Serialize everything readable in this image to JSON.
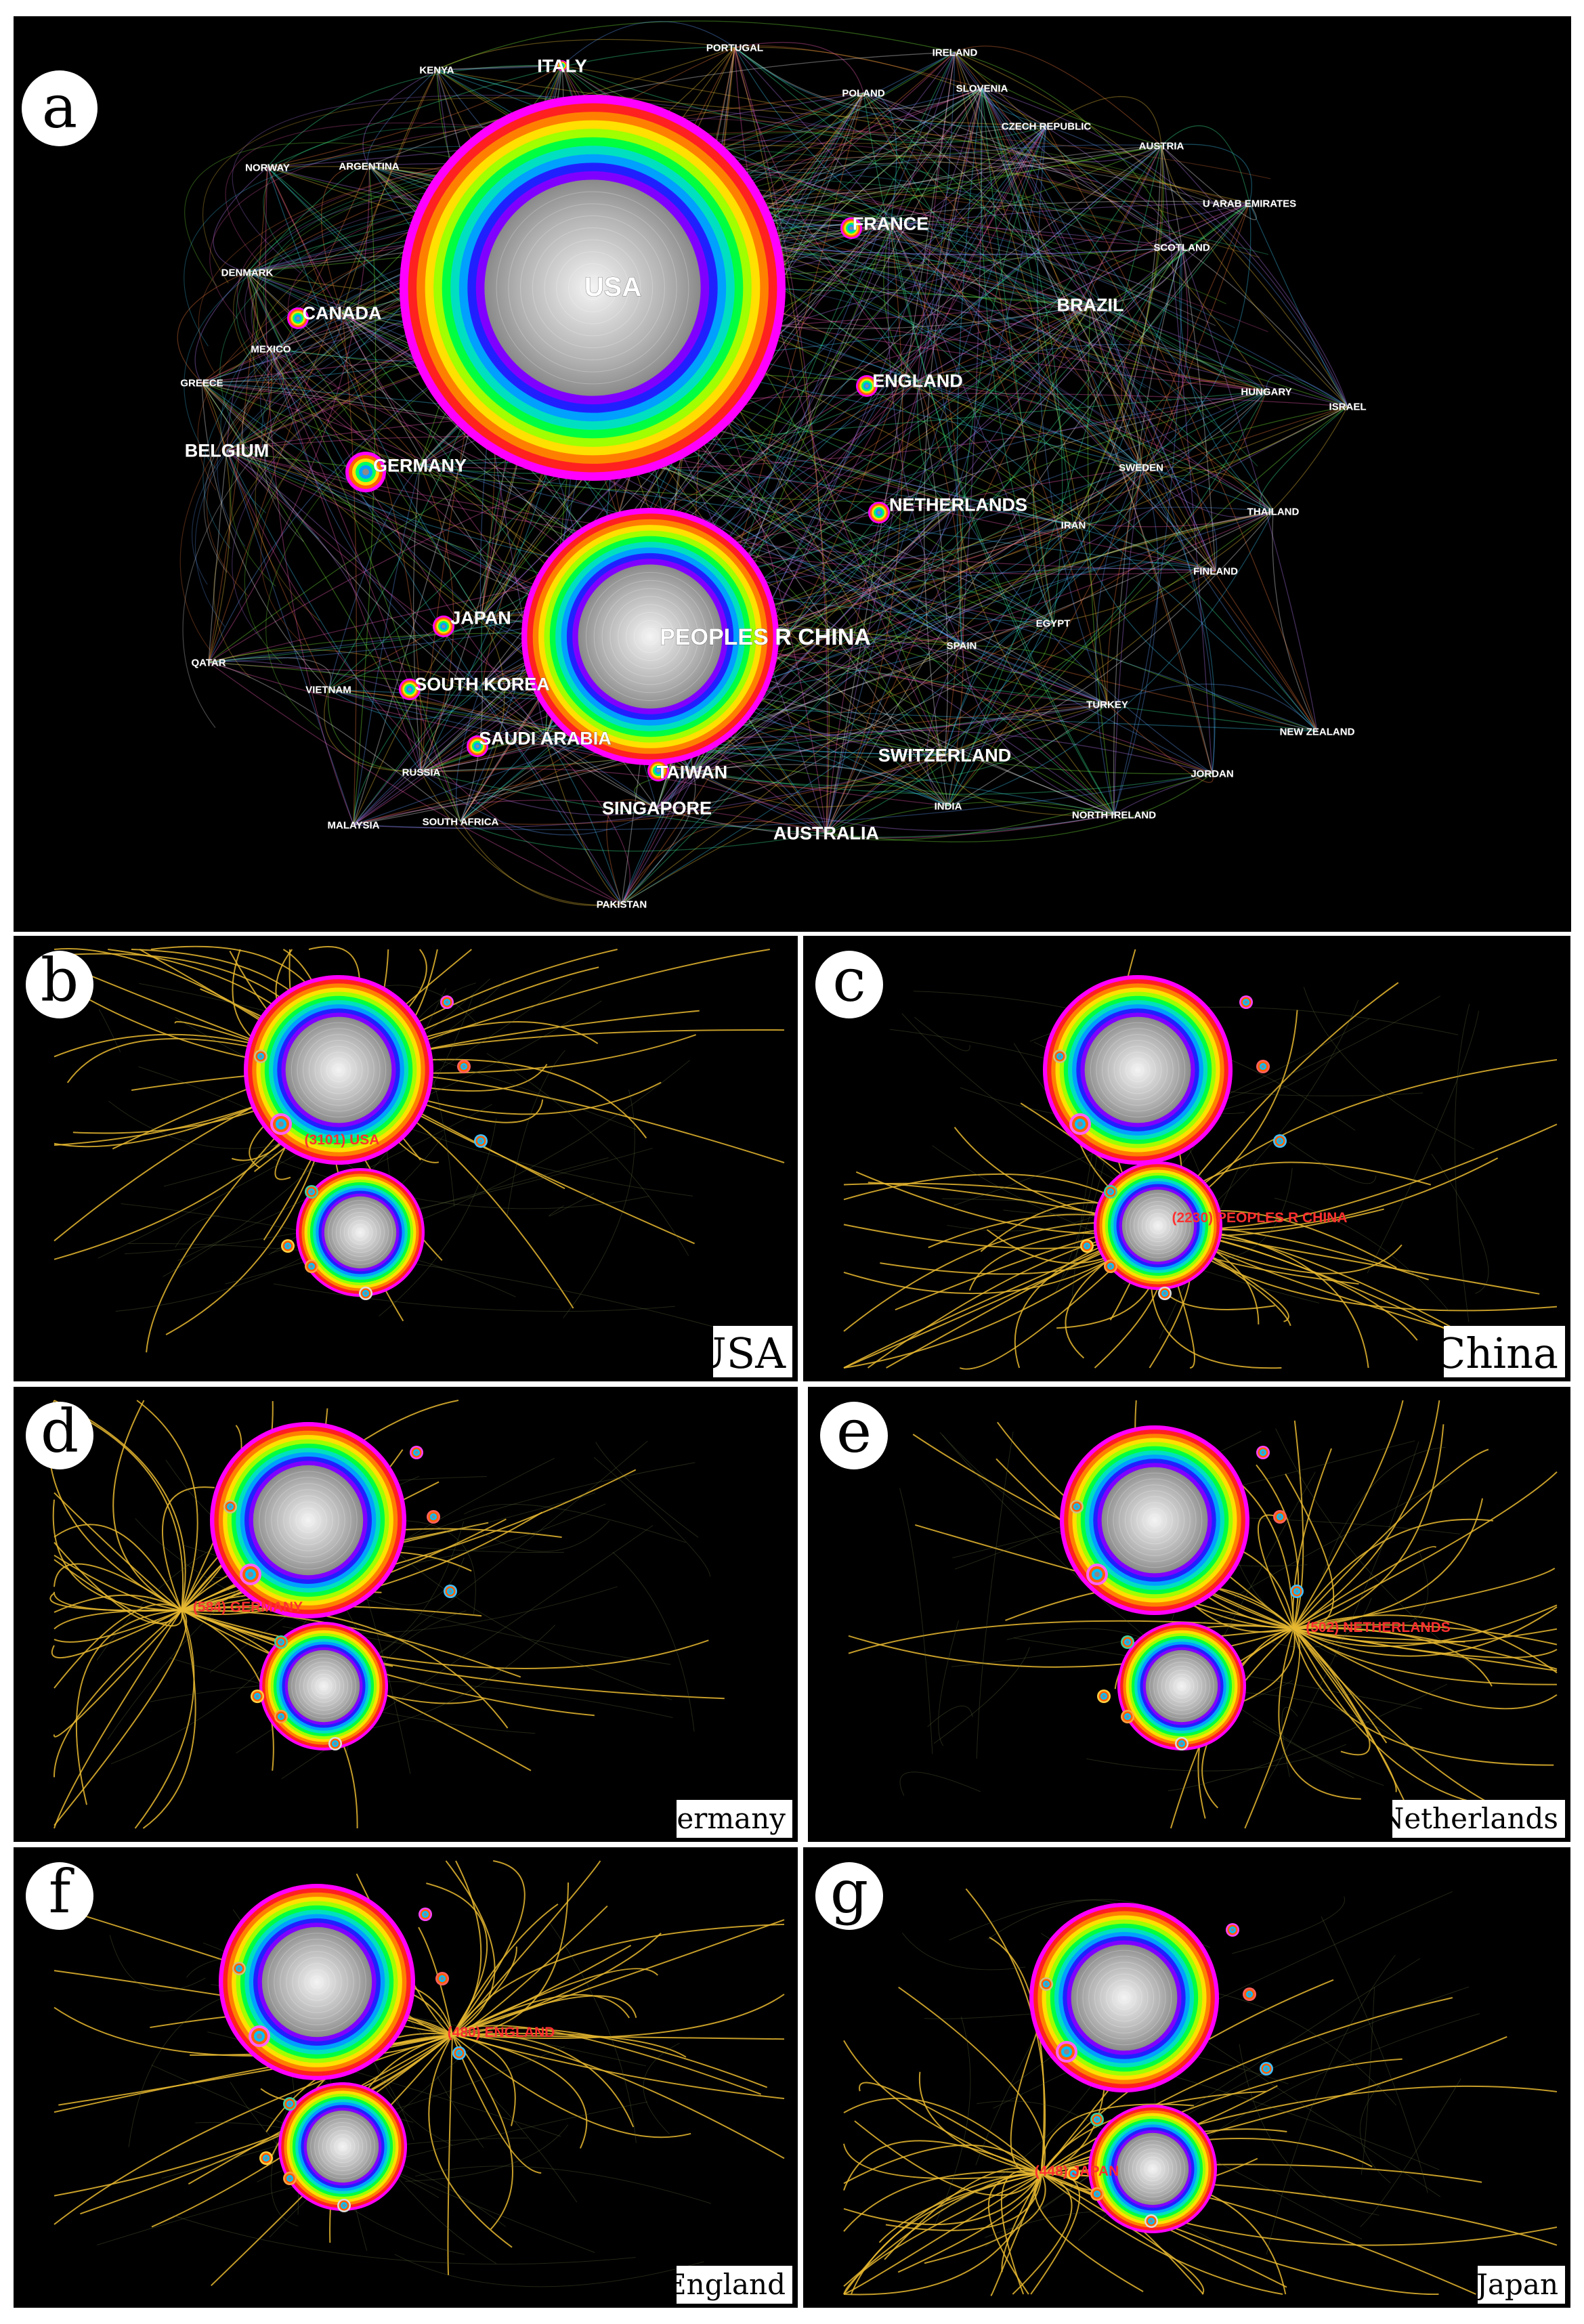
{
  "main_network": {
    "letter": "a",
    "nodes": [
      {
        "name": "USA",
        "label": "USA",
        "size": "xl",
        "ring": true
      },
      {
        "name": "PEOPLES R CHINA",
        "label": "PEOPLES R CHINA",
        "size": "xl",
        "ring": true
      },
      {
        "name": "ITALY",
        "label": "ITALY",
        "size": "m"
      },
      {
        "name": "KENYA",
        "label": "KENYA",
        "size": "s"
      },
      {
        "name": "PORTUGAL",
        "label": "PORTUGAL",
        "size": "s"
      },
      {
        "name": "IRELAND",
        "label": "IRELAND",
        "size": "s"
      },
      {
        "name": "POLAND",
        "label": "POLAND",
        "size": "s"
      },
      {
        "name": "SLOVENIA",
        "label": "SLOVENIA",
        "size": "s"
      },
      {
        "name": "CZECH REPUBLIC",
        "label": "CZECH REPUBLIC",
        "size": "s"
      },
      {
        "name": "AUSTRIA",
        "label": "AUSTRIA",
        "size": "s"
      },
      {
        "name": "NORWAY",
        "label": "NORWAY",
        "size": "s"
      },
      {
        "name": "ARGENTINA",
        "label": "ARGENTINA",
        "size": "s"
      },
      {
        "name": "FRANCE",
        "label": "FRANCE",
        "size": "m"
      },
      {
        "name": "U ARAB EMIRATES",
        "label": "U ARAB EMIRATES",
        "size": "s"
      },
      {
        "name": "DENMARK",
        "label": "DENMARK",
        "size": "s"
      },
      {
        "name": "CANADA",
        "label": "CANADA",
        "size": "m"
      },
      {
        "name": "SCOTLAND",
        "label": "SCOTLAND",
        "size": "s"
      },
      {
        "name": "BRAZIL",
        "label": "BRAZIL",
        "size": "m"
      },
      {
        "name": "MEXICO",
        "label": "MEXICO",
        "size": "s"
      },
      {
        "name": "GREECE",
        "label": "GREECE",
        "size": "s"
      },
      {
        "name": "ENGLAND",
        "label": "ENGLAND",
        "size": "m"
      },
      {
        "name": "HUNGARY",
        "label": "HUNGARY",
        "size": "s"
      },
      {
        "name": "ISRAEL",
        "label": "ISRAEL",
        "size": "s"
      },
      {
        "name": "BELGIUM",
        "label": "BELGIUM",
        "size": "m"
      },
      {
        "name": "GERMANY",
        "label": "GERMANY",
        "size": "m"
      },
      {
        "name": "SWEDEN",
        "label": "SWEDEN",
        "size": "s"
      },
      {
        "name": "NETHERLANDS",
        "label": "NETHERLANDS",
        "size": "m"
      },
      {
        "name": "THAILAND",
        "label": "THAILAND",
        "size": "s"
      },
      {
        "name": "IRAN",
        "label": "IRAN",
        "size": "s"
      },
      {
        "name": "FINLAND",
        "label": "FINLAND",
        "size": "s"
      },
      {
        "name": "JAPAN",
        "label": "JAPAN",
        "size": "m"
      },
      {
        "name": "EGYPT",
        "label": "EGYPT",
        "size": "s"
      },
      {
        "name": "QATAR",
        "label": "QATAR",
        "size": "s"
      },
      {
        "name": "SPAIN",
        "label": "SPAIN",
        "size": "s"
      },
      {
        "name": "VIETNAM",
        "label": "VIETNAM",
        "size": "s"
      },
      {
        "name": "SOUTH KOREA",
        "label": "SOUTH KOREA",
        "size": "m"
      },
      {
        "name": "TURKEY",
        "label": "TURKEY",
        "size": "s"
      },
      {
        "name": "SAUDI ARABIA",
        "label": "SAUDI ARABIA",
        "size": "m"
      },
      {
        "name": "NEW ZEALAND",
        "label": "NEW ZEALAND",
        "size": "s"
      },
      {
        "name": "RUSSIA",
        "label": "RUSSIA",
        "size": "s"
      },
      {
        "name": "TAIWAN",
        "label": "TAIWAN",
        "size": "m"
      },
      {
        "name": "SWITZERLAND",
        "label": "SWITZERLAND",
        "size": "m"
      },
      {
        "name": "JORDAN",
        "label": "JORDAN",
        "size": "s"
      },
      {
        "name": "SOUTH AFRICA",
        "label": "SOUTH AFRICA",
        "size": "s"
      },
      {
        "name": "MALAYSIA",
        "label": "MALAYSIA",
        "size": "s"
      },
      {
        "name": "SINGAPORE",
        "label": "SINGAPORE",
        "size": "m"
      },
      {
        "name": "INDIA",
        "label": "INDIA",
        "size": "s"
      },
      {
        "name": "NORTH IRELAND",
        "label": "NORTH IRELAND",
        "size": "s"
      },
      {
        "name": "AUSTRALIA",
        "label": "AUSTRALIA",
        "size": "m"
      },
      {
        "name": "PAKISTAN",
        "label": "PAKISTAN",
        "size": "s"
      }
    ]
  },
  "subpanels": [
    {
      "letter": "b",
      "title": "USA",
      "highlight": "(3101) USA",
      "focus": "USA"
    },
    {
      "letter": "c",
      "title": "China",
      "highlight": "(2230) PEOPLES R CHINA",
      "focus": "CHINA"
    },
    {
      "letter": "d",
      "title": "Germany",
      "highlight": "(584) GERMANY",
      "focus": "GERMANY"
    },
    {
      "letter": "e",
      "title": "Netherlands",
      "highlight": "(502) NETHERLANDS",
      "focus": "NETHERLANDS"
    },
    {
      "letter": "f",
      "title": "England",
      "highlight": "(480) ENGLAND",
      "focus": "ENGLAND"
    },
    {
      "letter": "g",
      "title": "Japan",
      "highlight": "(448) JAPAN",
      "focus": "JAPAN"
    }
  ],
  "colors": {
    "background": "#000000",
    "edge_highlight": "#e8b830",
    "rings": [
      "#ff00ff",
      "#ff2020",
      "#ff8000",
      "#ffe000",
      "#a0ff00",
      "#00ff40",
      "#00e0c0",
      "#00a0ff",
      "#2020ff",
      "#8000ff"
    ],
    "core": "#a8a8a8"
  }
}
